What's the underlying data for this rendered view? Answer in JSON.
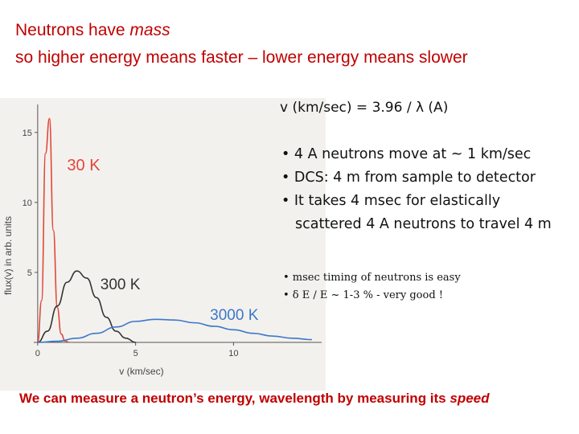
{
  "title_line1_a": "Neutrons have ",
  "title_line1_b": "mass",
  "title_line2": "so higher energy means faster – lower energy means slower",
  "formula": "v (km/sec) = 3.96 / λ (A)",
  "bullets_main": [
    "• 4 A neutrons move at ~ 1 km/sec",
    "• DCS: 4 m from sample to detector",
    "• It takes 4 msec for elastically",
    "scattered 4 A neutrons to travel 4 m"
  ],
  "bullets_small": [
    "• msec timing of neutrons is easy",
    "• δ E / E ~ 1-3 % - very good !"
  ],
  "bottom_a": "We can measure a neutron’s energy, wavelength by measuring its ",
  "bottom_b": "speed",
  "chart_data": {
    "type": "line",
    "xlabel": "v (km/sec)",
    "ylabel": "flux(v) in arb. units",
    "xlim": [
      -0.2,
      14.5
    ],
    "ylim": [
      0,
      17
    ],
    "xticks": [
      0,
      5,
      10
    ],
    "yticks": [
      5,
      10,
      15
    ],
    "series": [
      {
        "name": "30 K",
        "color": "#e0473a",
        "label_color": "#e0473a",
        "x": [
          0,
          0.2,
          0.4,
          0.6,
          0.8,
          1.0,
          1.2,
          1.4,
          1.6
        ],
        "y": [
          0,
          3.0,
          13.5,
          16.0,
          8.0,
          2.5,
          0.6,
          0.1,
          0
        ]
      },
      {
        "name": "300 K",
        "color": "#333333",
        "label_color": "#333333",
        "x": [
          0,
          0.5,
          1.0,
          1.5,
          2.0,
          2.5,
          3.0,
          3.5,
          4.0,
          4.5,
          5.0
        ],
        "y": [
          0,
          0.8,
          2.6,
          4.3,
          5.1,
          4.6,
          3.2,
          1.8,
          0.8,
          0.3,
          0
        ]
      },
      {
        "name": "3000 K",
        "color": "#3a78c9",
        "label_color": "#3a78c9",
        "x": [
          0,
          1,
          2,
          3,
          4,
          5,
          6,
          7,
          8,
          9,
          10,
          11,
          12,
          13,
          14
        ],
        "y": [
          0,
          0.08,
          0.3,
          0.65,
          1.1,
          1.5,
          1.65,
          1.6,
          1.4,
          1.15,
          0.9,
          0.65,
          0.45,
          0.3,
          0.2
        ]
      }
    ]
  }
}
